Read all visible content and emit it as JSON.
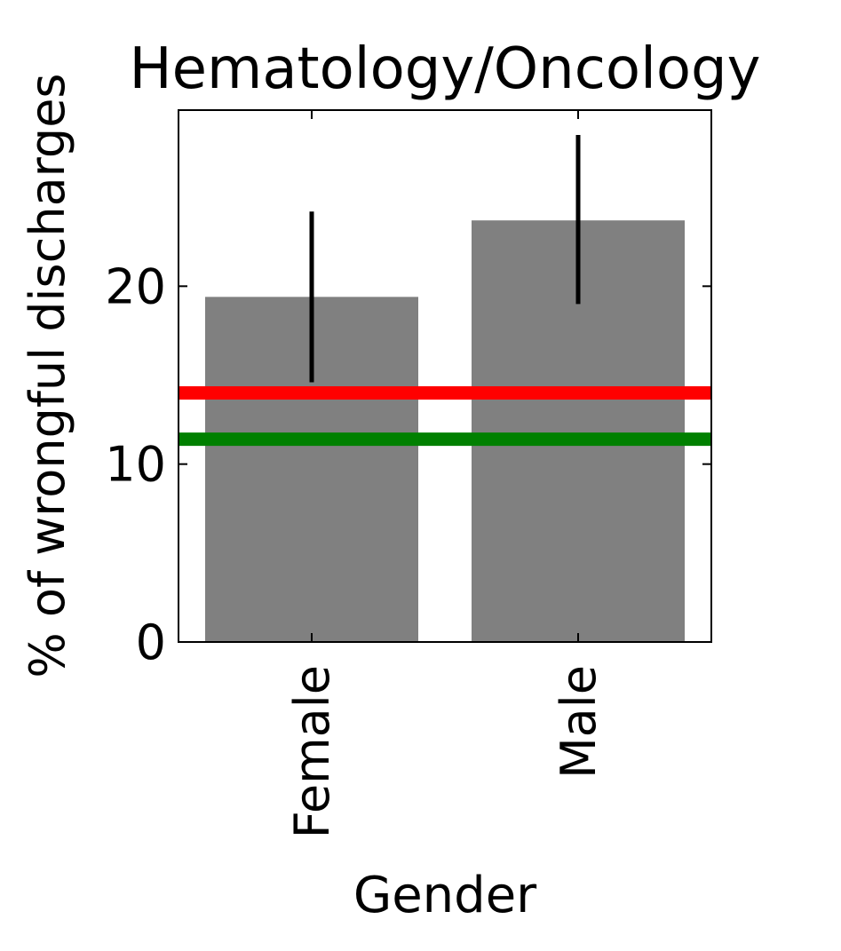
{
  "chart_data": {
    "type": "bar",
    "title": "Hematology/Oncology",
    "xlabel": "Gender",
    "ylabel": "% of wrongful discharges",
    "categories": [
      "Female",
      "Male"
    ],
    "values": [
      19.4,
      23.7
    ],
    "error_bars": [
      {
        "low": 14.6,
        "high": 24.2
      },
      {
        "low": 19.0,
        "high": 28.5
      }
    ],
    "reference_lines": [
      {
        "value": 14.0,
        "color": "#ff0000"
      },
      {
        "value": 11.4,
        "color": "#008000"
      }
    ],
    "ylim": [
      0,
      29.9
    ],
    "yticks": [
      0,
      10,
      20
    ],
    "bar_color": "#808080",
    "errorbar_color": "#000000",
    "grid": false,
    "legend": "none"
  }
}
